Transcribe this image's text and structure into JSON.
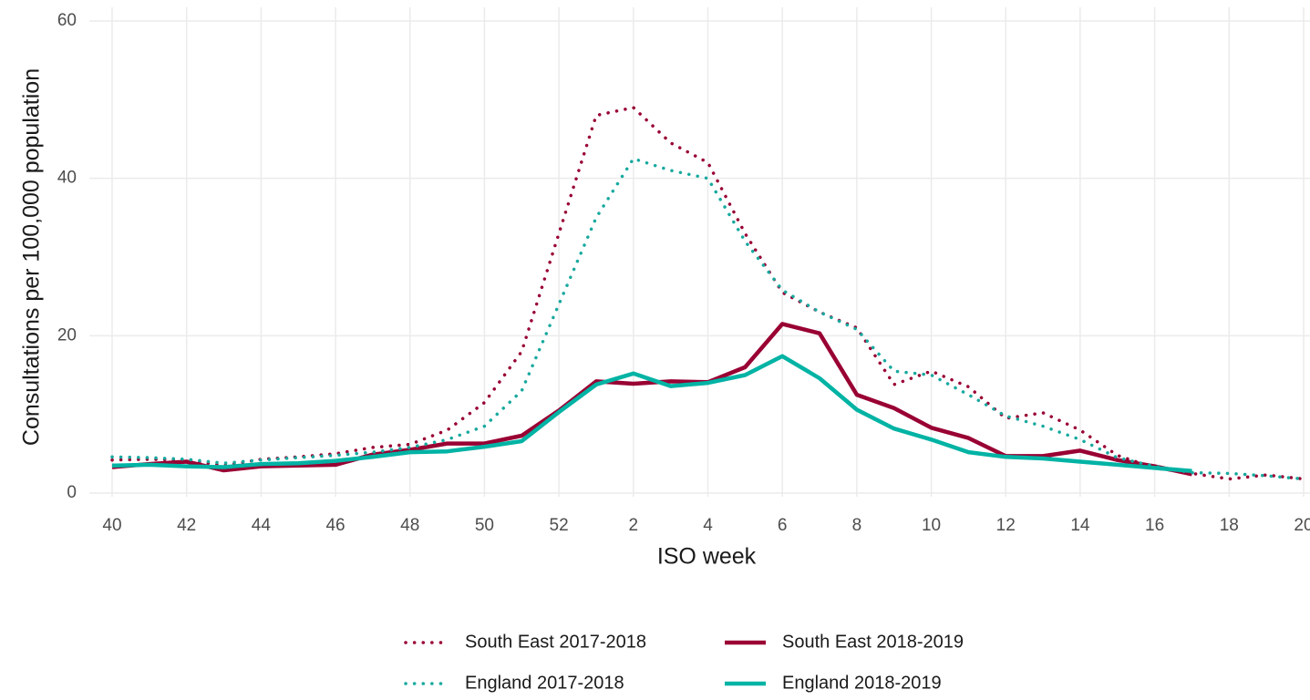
{
  "chart_data": {
    "type": "line",
    "xlabel": "ISO week",
    "ylabel": "Consultations per 100,000 population",
    "categories": [
      "40",
      null,
      "42",
      null,
      "44",
      null,
      "46",
      null,
      "48",
      null,
      "50",
      null,
      "52",
      null,
      "2",
      null,
      "4",
      null,
      "6",
      null,
      "8",
      null,
      "10",
      null,
      "12",
      null,
      "14",
      null,
      "16",
      null,
      "18",
      null,
      "20"
    ],
    "ylim": [
      0,
      60
    ],
    "yticks": [
      0,
      20,
      40,
      60
    ],
    "grid": true,
    "legend": "bottom",
    "series": [
      {
        "name": "South East 2017-2018",
        "color": "#990033",
        "line_style": "dotted",
        "values": [
          4.2,
          4.3,
          4.2,
          3.5,
          4.3,
          4.6,
          5.0,
          5.8,
          6.2,
          8.0,
          11.5,
          18,
          33,
          48,
          49,
          44.5,
          42,
          33,
          25.5,
          23,
          21,
          13.8,
          15.5,
          13.5,
          9.5,
          10.2,
          8.0,
          4.8,
          3.2,
          2.5,
          1.8,
          2.3,
          1.8
        ]
      },
      {
        "name": "South East 2018-2019",
        "color": "#990033",
        "line_style": "solid",
        "values": [
          3.3,
          3.7,
          4.0,
          2.9,
          3.4,
          3.5,
          3.6,
          4.9,
          5.5,
          6.3,
          6.3,
          7.3,
          10.5,
          14.2,
          13.9,
          14.2,
          14.1,
          16,
          21.5,
          20.3,
          12.5,
          10.8,
          8.3,
          7,
          4.7,
          4.7,
          5.4,
          4.2,
          3.4,
          2.4,
          null,
          null,
          null
        ]
      },
      {
        "name": "England 2017-2018",
        "color": "#17a99f",
        "line_style": "dotted",
        "values": [
          4.6,
          4.5,
          4.3,
          3.8,
          4.2,
          4.5,
          4.8,
          5.2,
          5.8,
          6.8,
          8.5,
          13,
          24,
          35,
          42.5,
          41,
          40,
          32,
          25.8,
          23,
          20.8,
          15.5,
          15,
          12.5,
          9.8,
          8.5,
          6.8,
          4.5,
          3.4,
          2.6,
          2.5,
          2.2,
          1.8
        ]
      },
      {
        "name": "England 2018-2019",
        "color": "#00b3a4",
        "line_style": "solid",
        "values": [
          3.5,
          3.6,
          3.4,
          3.3,
          3.7,
          3.8,
          4.1,
          4.6,
          5.2,
          5.3,
          5.9,
          6.6,
          10.3,
          13.8,
          15.2,
          13.6,
          14,
          15,
          17.4,
          14.6,
          10.6,
          8.2,
          6.8,
          5.2,
          4.6,
          4.4,
          4,
          3.6,
          3.2,
          2.8,
          null,
          null,
          null
        ]
      }
    ]
  }
}
